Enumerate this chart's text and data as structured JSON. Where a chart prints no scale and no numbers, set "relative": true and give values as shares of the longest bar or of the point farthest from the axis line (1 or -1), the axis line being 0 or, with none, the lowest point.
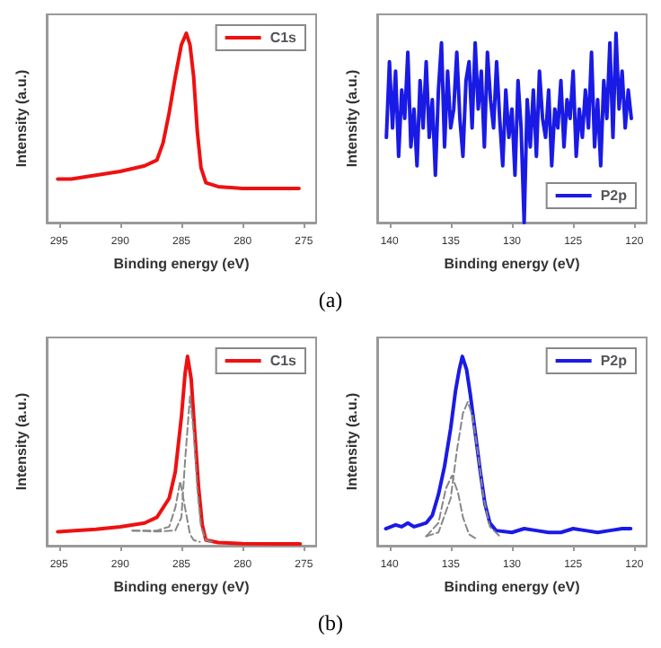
{
  "chart_data": [
    {
      "type": "line",
      "xlabel": "Binding energy (eV)",
      "ylabel": "Intensity (a.u.)",
      "relative": true,
      "xlim": [
        296,
        274
      ],
      "xticks": [
        295,
        290,
        285,
        280,
        275
      ],
      "grid": false,
      "legend": "top right",
      "marker": "none",
      "annotations": [
        "(a)"
      ],
      "series": [
        {
          "name": "C1s",
          "color": "#ee1111",
          "line_style": "solid",
          "x": [
            295.1,
            294,
            292,
            290,
            288,
            287,
            286.5,
            286,
            285.5,
            285,
            284.6,
            284.3,
            284,
            283.7,
            283.4,
            283,
            282,
            280,
            278,
            275.4
          ],
          "values": [
            0.23,
            0.23,
            0.25,
            0.27,
            0.3,
            0.33,
            0.42,
            0.58,
            0.77,
            0.94,
            1,
            0.94,
            0.77,
            0.48,
            0.29,
            0.21,
            0.19,
            0.18,
            0.18,
            0.18
          ]
        }
      ]
    },
    {
      "type": "line",
      "xlabel": "Binding energy (eV)",
      "ylabel": "Intensity (a.u.)",
      "relative": true,
      "xlim": [
        141,
        119
      ],
      "xticks": [
        140,
        135,
        130,
        125,
        120
      ],
      "grid": false,
      "legend": "bottom right",
      "marker": "none",
      "series": [
        {
          "name": "P2p",
          "color": "#1a1ae6",
          "line_style": "solid",
          "x": [
            140.25,
            140,
            139.75,
            139.5,
            139.25,
            139,
            138.75,
            138.5,
            138.25,
            138,
            137.75,
            137.5,
            137.25,
            137,
            136.75,
            136.5,
            136.25,
            136,
            135.75,
            135.5,
            135.25,
            135,
            134.75,
            134.5,
            134.25,
            134,
            133.75,
            133.5,
            133.25,
            133,
            132.75,
            132.5,
            132.25,
            132,
            131.75,
            131.5,
            131.25,
            131,
            130.75,
            130.5,
            130.25,
            130,
            129.75,
            129.5,
            129.25,
            129,
            128.75,
            128.5,
            128.25,
            128,
            127.75,
            127.5,
            127.25,
            127,
            126.75,
            126.5,
            126.25,
            126,
            125.75,
            125.5,
            125.25,
            125,
            124.75,
            124.5,
            124.25,
            124,
            123.75,
            123.5,
            123.25,
            123,
            122.75,
            122.5,
            122.25,
            122,
            121.75,
            121.5,
            121.25,
            121,
            120.75,
            120.5,
            120.25
          ],
          "values": [
            0.45,
            0.85,
            0.5,
            0.8,
            0.35,
            0.7,
            0.55,
            0.9,
            0.4,
            0.6,
            0.3,
            0.75,
            0.5,
            0.85,
            0.45,
            0.65,
            0.25,
            0.7,
            0.95,
            0.4,
            0.8,
            0.5,
            0.6,
            0.9,
            0.55,
            0.35,
            0.75,
            0.85,
            0.5,
            0.95,
            0.6,
            0.8,
            0.4,
            0.9,
            0.65,
            0.5,
            0.85,
            0.55,
            0.3,
            0.7,
            0.45,
            0.6,
            0.25,
            0.75,
            0.5,
            0.0,
            0.65,
            0.4,
            0.7,
            0.35,
            0.8,
            0.55,
            0.45,
            0.7,
            0.3,
            0.6,
            0.5,
            0.75,
            0.4,
            0.65,
            0.55,
            0.8,
            0.35,
            0.6,
            0.45,
            0.7,
            0.5,
            0.9,
            0.4,
            0.65,
            0.3,
            0.75,
            0.55,
            0.95,
            0.45,
            1.0,
            0.6,
            0.8,
            0.5,
            0.7,
            0.55
          ]
        }
      ]
    },
    {
      "type": "line",
      "xlabel": "Binding energy (eV)",
      "ylabel": "Intensity (a.u.)",
      "relative": true,
      "xlim": [
        296,
        274
      ],
      "xticks": [
        295,
        290,
        285,
        280,
        275
      ],
      "grid": false,
      "legend": "top right",
      "marker": "none",
      "annotations": [
        "(b)"
      ],
      "series": [
        {
          "color": "#888888",
          "line_style": "dashed",
          "x": [
            289,
            287,
            285.5,
            285,
            284.7,
            284.3,
            284,
            283.7,
            283.4,
            283,
            282.5
          ],
          "values": [
            0.08,
            0.075,
            0.08,
            0.15,
            0.45,
            0.79,
            0.6,
            0.3,
            0.1,
            0.03,
            0.02
          ]
        },
        {
          "color": "#888888",
          "line_style": "dashed",
          "x": [
            289,
            287,
            286,
            285.5,
            285.1,
            284.7,
            284.3,
            284,
            283.5
          ],
          "values": [
            0.08,
            0.08,
            0.1,
            0.2,
            0.34,
            0.2,
            0.06,
            0.03,
            0.02
          ]
        },
        {
          "name": "C1s",
          "color": "#ee1111",
          "line_style": "solid",
          "x": [
            295.1,
            294,
            292,
            290,
            288,
            287,
            286,
            285.5,
            285,
            284.7,
            284.5,
            284.2,
            283.9,
            283.6,
            283.3,
            283,
            282,
            280,
            277,
            275.3
          ],
          "values": [
            0.074,
            0.078,
            0.086,
            0.1,
            0.12,
            0.15,
            0.25,
            0.39,
            0.68,
            0.91,
            1,
            0.88,
            0.59,
            0.31,
            0.11,
            0.03,
            0.017,
            0.011,
            0.009,
            0.009
          ]
        }
      ]
    },
    {
      "type": "line",
      "xlabel": "Binding energy (eV)",
      "ylabel": "Intensity (a.u.)",
      "relative": true,
      "xlim": [
        141,
        119
      ],
      "xticks": [
        140,
        135,
        130,
        125,
        120
      ],
      "grid": false,
      "legend": "top right",
      "marker": "none",
      "series": [
        {
          "color": "#888888",
          "line_style": "dashed",
          "x": [
            137,
            136,
            135,
            134.5,
            134,
            133.6,
            133.2,
            132.8,
            132.3,
            131.8,
            131
          ],
          "values": [
            0.05,
            0.07,
            0.25,
            0.5,
            0.7,
            0.76,
            0.68,
            0.5,
            0.25,
            0.1,
            0.05
          ]
        },
        {
          "color": "#888888",
          "line_style": "dashed",
          "x": [
            137,
            136,
            135.4,
            134.9,
            134.4,
            134,
            133.5,
            133
          ],
          "values": [
            0.05,
            0.12,
            0.3,
            0.37,
            0.28,
            0.15,
            0.06,
            0.04
          ]
        },
        {
          "name": "P2p",
          "color": "#1a1ae6",
          "line_style": "solid",
          "x": [
            140.3,
            139.5,
            139,
            138.5,
            138,
            137.5,
            137,
            136.5,
            136,
            135.5,
            135,
            134.6,
            134.3,
            134.05,
            133.7,
            133.4,
            133,
            132.6,
            132.2,
            131.8,
            131.3,
            130,
            129,
            128,
            127,
            126,
            125,
            124,
            123,
            122,
            121,
            120.3
          ],
          "values": [
            0.09,
            0.11,
            0.1,
            0.12,
            0.1,
            0.11,
            0.12,
            0.16,
            0.27,
            0.42,
            0.62,
            0.82,
            0.93,
            1,
            0.93,
            0.8,
            0.6,
            0.4,
            0.22,
            0.12,
            0.08,
            0.07,
            0.09,
            0.08,
            0.07,
            0.07,
            0.09,
            0.08,
            0.07,
            0.08,
            0.09,
            0.09
          ]
        }
      ]
    }
  ]
}
